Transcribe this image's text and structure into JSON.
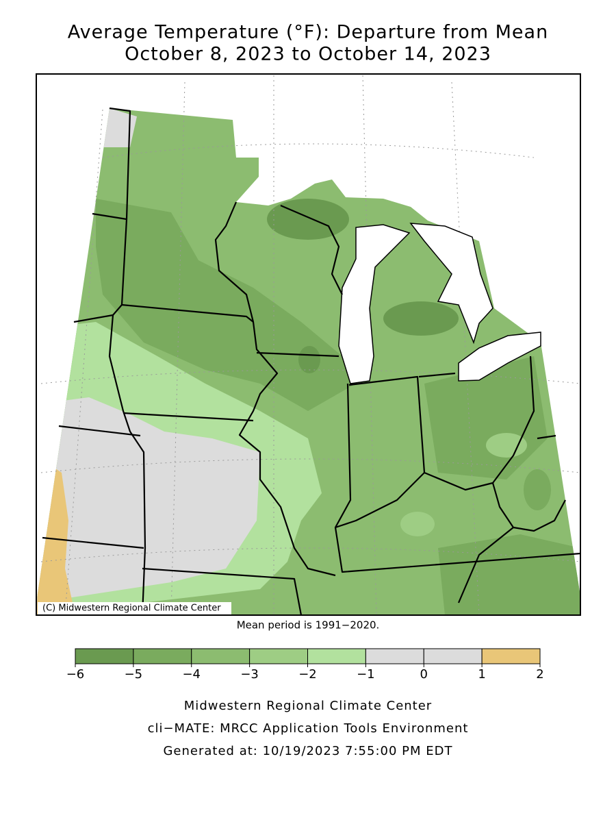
{
  "header": {
    "title": "Average Temperature (°F): Departure from Mean",
    "subtitle": "October 8, 2023 to October 14, 2023"
  },
  "map": {
    "credit": "(C) Midwestern Regional Climate Center",
    "note": "Mean period is 1991−2020."
  },
  "colorbar": {
    "ticks": [
      {
        "value": -6,
        "label": "−6"
      },
      {
        "value": -5,
        "label": "−5"
      },
      {
        "value": -4,
        "label": "−4"
      },
      {
        "value": -3,
        "label": "−3"
      },
      {
        "value": -2,
        "label": "−2"
      },
      {
        "value": -1,
        "label": "−1"
      },
      0,
      1,
      2
    ],
    "colors": [
      "#6a9a50",
      "#7aab5e",
      "#8cbc70",
      "#9ecd84",
      "#b2e19e",
      "#dcdcdc",
      "#dcdcdc",
      "#e9c678"
    ]
  },
  "footer": {
    "lines": [
      "Midwestern Regional Climate Center",
      "cli−MATE: MRCC Application Tools Environment",
      "Generated at: 10/19/2023 7:55:00 PM EDT"
    ]
  }
}
